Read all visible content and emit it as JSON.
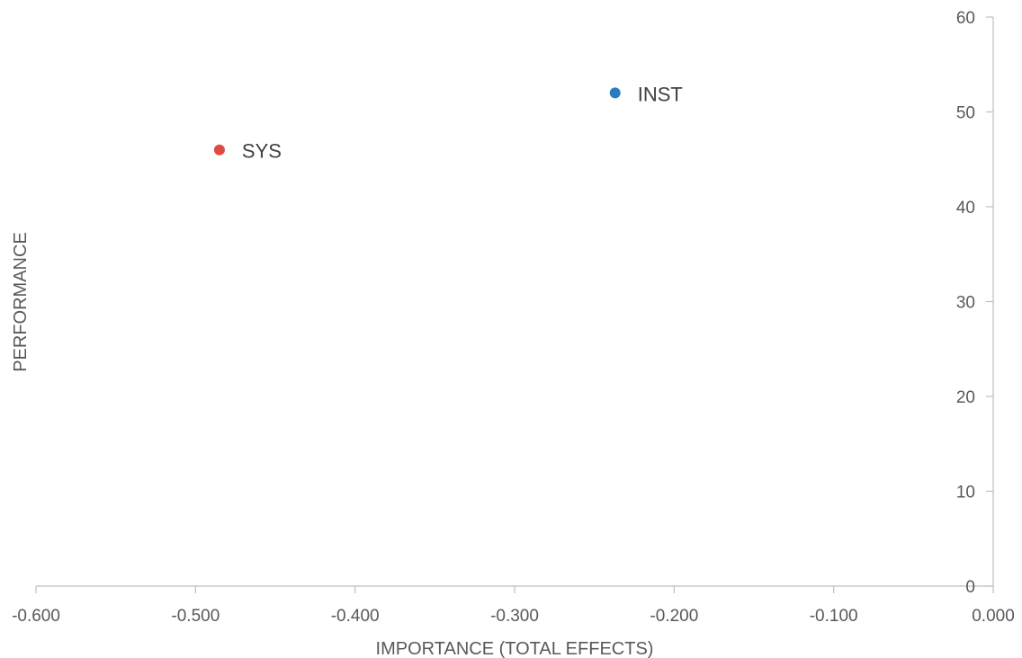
{
  "chart_data": {
    "type": "scatter",
    "xlabel": "IMPORTANCE (TOTAL EFFECTS)",
    "ylabel": "PERFORMANCE",
    "xlim": [
      -0.6,
      0.0
    ],
    "ylim": [
      0,
      60
    ],
    "x_ticks": [
      "-0.600",
      "-0.500",
      "-0.400",
      "-0.300",
      "-0.200",
      "-0.100",
      "0.000"
    ],
    "y_ticks": [
      "0",
      "10",
      "20",
      "30",
      "40",
      "50",
      "60"
    ],
    "grid": false,
    "y_axis_position": "right",
    "points": [
      {
        "label": "SYS",
        "x": -0.485,
        "y": 46,
        "color": "#e04a45"
      },
      {
        "label": "INST",
        "x": -0.237,
        "y": 52,
        "color": "#2a7bbf"
      }
    ]
  }
}
